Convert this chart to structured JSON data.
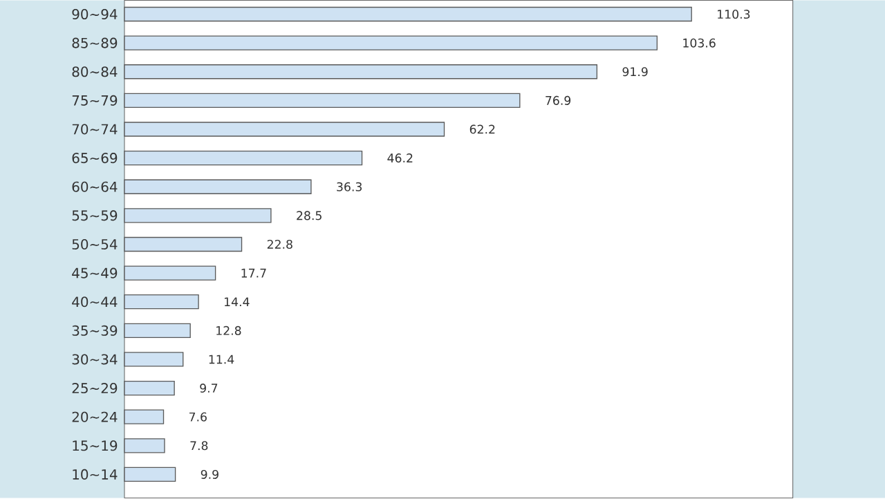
{
  "chart_data": {
    "type": "bar",
    "orientation": "horizontal",
    "data_labels": true,
    "categories": [
      "90∼94",
      "85∼89",
      "80∼84",
      "75∼79",
      "70∼74",
      "65∼69",
      "60∼64",
      "55∼59",
      "50∼54",
      "45∼49",
      "40∼44",
      "35∼39",
      "30∼34",
      "25∼29",
      "20∼24",
      "15∼19",
      "10∼14"
    ],
    "values": [
      110.3,
      103.6,
      91.9,
      76.9,
      62.2,
      46.2,
      36.3,
      28.5,
      22.8,
      17.7,
      14.4,
      12.8,
      11.4,
      9.7,
      7.6,
      7.8,
      9.9
    ],
    "color": "#cfe2f3",
    "xlim": [
      0,
      130
    ],
    "tick_labels": "y"
  }
}
